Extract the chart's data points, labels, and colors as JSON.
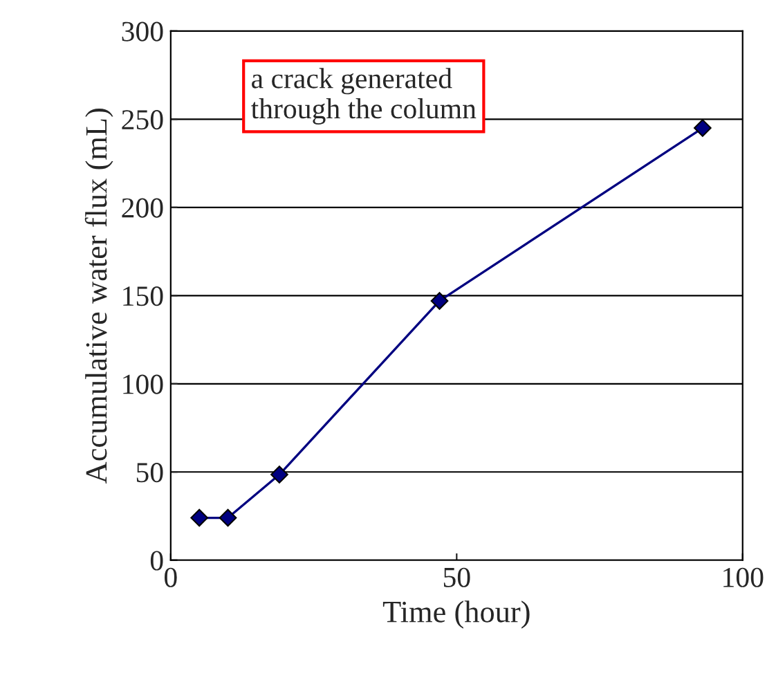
{
  "chart_data": {
    "type": "line",
    "xlabel": "Time (hour)",
    "ylabel": "Accumulative water flux (mL)",
    "x": [
      5,
      10,
      19,
      47,
      93
    ],
    "series": [
      {
        "color": "#000080",
        "values": [
          24,
          24,
          48.5,
          147,
          245
        ]
      }
    ],
    "xlim": [
      0,
      100
    ],
    "xticks": [
      0,
      50,
      100
    ],
    "ylim": [
      0,
      300
    ],
    "yticks": [
      0,
      50,
      100,
      150,
      200,
      250,
      300
    ],
    "grid": "y",
    "marker": "diamond",
    "line_style": "solid",
    "legend": false,
    "annotations": [
      "a crack generated\nthrough the column"
    ]
  }
}
